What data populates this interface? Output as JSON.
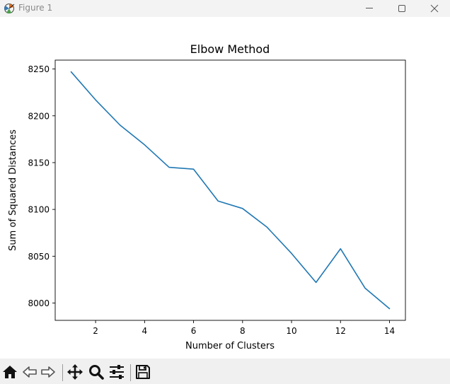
{
  "window": {
    "title": "Figure 1"
  },
  "toolbar": {
    "buttons": [
      {
        "name": "home-icon"
      },
      {
        "name": "back-arrow-icon"
      },
      {
        "name": "forward-arrow-icon"
      },
      {
        "name": "pan-move-icon"
      },
      {
        "name": "zoom-magnifier-icon"
      },
      {
        "name": "configure-subplots-icon"
      },
      {
        "name": "save-figure-icon"
      }
    ]
  },
  "chart_data": {
    "type": "line",
    "title": "Elbow Method",
    "xlabel": "Number of Clusters",
    "ylabel": "Sum of Squared Distances",
    "x": [
      1,
      2,
      3,
      4,
      5,
      6,
      7,
      8,
      9,
      10,
      11,
      12,
      13,
      14
    ],
    "series": [
      {
        "values": [
          8247,
          8217,
          8190,
          8169,
          8145,
          8143,
          8109,
          8101,
          8081,
          8053,
          8022,
          8058,
          8016,
          7994
        ],
        "color": "#1f77b4"
      }
    ],
    "xticks": [
      2,
      4,
      6,
      8,
      10,
      12,
      14
    ],
    "yticks": [
      8000,
      8050,
      8100,
      8150,
      8200,
      8250
    ],
    "xlim": [
      0.35,
      14.65
    ],
    "ylim": [
      7981.5,
      8259.5
    ],
    "grid": false,
    "legend": "none"
  }
}
